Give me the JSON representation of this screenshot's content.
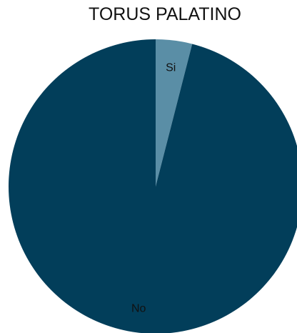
{
  "chart_data": {
    "type": "pie",
    "title": "TORUS PALATINO",
    "slices": [
      {
        "label": "Si",
        "value": 4,
        "color": "#5a8ea6"
      },
      {
        "label": "No",
        "value": 96,
        "color": "#023e5a"
      }
    ],
    "start": "top",
    "direction": "clockwise",
    "legend": "none",
    "data_labels": "category-name"
  }
}
